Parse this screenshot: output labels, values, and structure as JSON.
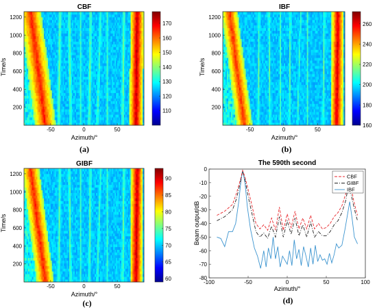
{
  "panels": [
    {
      "id": "a",
      "sublabel": "(a)",
      "chart_data": {
        "type": "heatmap",
        "title": "CBF",
        "xlabel": "Azimuth/°",
        "ylabel": "Time/s",
        "xlim": [
          -90,
          90
        ],
        "ylim": [
          0,
          1260
        ],
        "xticks": [
          -50,
          0,
          50
        ],
        "yticks": [
          200,
          400,
          600,
          800,
          1000,
          1200
        ],
        "colorbar": {
          "min": 100,
          "max": 178,
          "ticks": [
            110,
            120,
            130,
            140,
            150,
            160,
            170
          ]
        },
        "tracks": [
          {
            "x_at_t0": -58,
            "x_at_tmax": -80,
            "width": 16,
            "level": 0.82
          },
          {
            "x_at_t0": 78,
            "x_at_tmax": 80,
            "width": 10,
            "level": 0.9
          },
          {
            "x_at_t0": -38,
            "x_at_tmax": -36,
            "width": 3,
            "level": 0.45
          },
          {
            "x_at_t0": -20,
            "x_at_tmax": -22,
            "width": 3,
            "level": 0.45
          },
          {
            "x_at_t0": -5,
            "x_at_tmax": -5,
            "width": 3,
            "level": 0.4
          },
          {
            "x_at_t0": 8,
            "x_at_tmax": 10,
            "width": 3,
            "level": 0.45
          },
          {
            "x_at_t0": 20,
            "x_at_tmax": 25,
            "width": 3,
            "level": 0.42
          },
          {
            "x_at_t0": 35,
            "x_at_tmax": 35,
            "width": 3,
            "level": 0.4
          },
          {
            "x_at_t0": 58,
            "x_at_tmax": 60,
            "width": 3,
            "level": 0.45
          }
        ]
      }
    },
    {
      "id": "b",
      "sublabel": "(b)",
      "chart_data": {
        "type": "heatmap",
        "title": "IBF",
        "xlabel": "Azimuth/°",
        "ylabel": "Time/s",
        "xlim": [
          -90,
          90
        ],
        "ylim": [
          0,
          1260
        ],
        "xticks": [
          -50,
          0,
          50
        ],
        "yticks": [
          200,
          400,
          600,
          800,
          1000,
          1200
        ],
        "colorbar": {
          "min": 160,
          "max": 272,
          "ticks": [
            160,
            180,
            200,
            220,
            240,
            260
          ]
        },
        "tracks": [
          {
            "x_at_t0": -58,
            "x_at_tmax": -80,
            "width": 12,
            "level": 0.8
          },
          {
            "x_at_t0": 78,
            "x_at_tmax": 80,
            "width": 9,
            "level": 0.88
          },
          {
            "x_at_t0": -38,
            "x_at_tmax": -36,
            "width": 2,
            "level": 0.45
          },
          {
            "x_at_t0": -20,
            "x_at_tmax": -22,
            "width": 2,
            "level": 0.45
          },
          {
            "x_at_t0": -5,
            "x_at_tmax": -5,
            "width": 2,
            "level": 0.4
          },
          {
            "x_at_t0": 8,
            "x_at_tmax": 10,
            "width": 2,
            "level": 0.45
          },
          {
            "x_at_t0": 20,
            "x_at_tmax": 25,
            "width": 2,
            "level": 0.42
          },
          {
            "x_at_t0": 35,
            "x_at_tmax": 35,
            "width": 2,
            "level": 0.4
          },
          {
            "x_at_t0": 58,
            "x_at_tmax": 60,
            "width": 2,
            "level": 0.45
          }
        ]
      }
    },
    {
      "id": "c",
      "sublabel": "(c)",
      "chart_data": {
        "type": "heatmap",
        "title": "GIBF",
        "xlabel": "Azimuth/°",
        "ylabel": "Time/s",
        "xlim": [
          -90,
          90
        ],
        "ylim": [
          0,
          1260
        ],
        "xticks": [
          -50,
          0,
          50
        ],
        "yticks": [
          200,
          400,
          600,
          800,
          1000,
          1200
        ],
        "colorbar": {
          "min": 59,
          "max": 93,
          "ticks": [
            60,
            65,
            70,
            75,
            80,
            85,
            90
          ]
        },
        "tracks": [
          {
            "x_at_t0": -58,
            "x_at_tmax": -80,
            "width": 13,
            "level": 0.82
          },
          {
            "x_at_t0": 78,
            "x_at_tmax": 80,
            "width": 9,
            "level": 0.9
          },
          {
            "x_at_t0": -38,
            "x_at_tmax": -36,
            "width": 2.5,
            "level": 0.45
          },
          {
            "x_at_t0": -20,
            "x_at_tmax": -22,
            "width": 2.5,
            "level": 0.45
          },
          {
            "x_at_t0": -5,
            "x_at_tmax": -5,
            "width": 2.5,
            "level": 0.4
          },
          {
            "x_at_t0": 8,
            "x_at_tmax": 10,
            "width": 2.5,
            "level": 0.45
          },
          {
            "x_at_t0": 20,
            "x_at_tmax": 25,
            "width": 2.5,
            "level": 0.42
          },
          {
            "x_at_t0": 35,
            "x_at_tmax": 35,
            "width": 2.5,
            "level": 0.4
          },
          {
            "x_at_t0": 58,
            "x_at_tmax": 60,
            "width": 2.5,
            "level": 0.45
          }
        ]
      }
    },
    {
      "id": "d",
      "sublabel": "(d)",
      "chart_data": {
        "type": "line",
        "title": "The 590th second",
        "xlabel": "Azimuth/°",
        "ylabel": "Beam output/dB",
        "xlim": [
          -100,
          100
        ],
        "ylim": [
          -80,
          0
        ],
        "xticks": [
          -100,
          -50,
          0,
          50,
          100
        ],
        "yticks": [
          0,
          -10,
          -20,
          -30,
          -40,
          -50,
          -60,
          -70,
          -80
        ],
        "legend_position": "top-right",
        "series": [
          {
            "name": "CBF",
            "color": "#e8262b",
            "dash": "dashed",
            "x": [
              -90,
              -80,
              -70,
              -65,
              -60,
              -57,
              -54,
              -50,
              -45,
              -40,
              -35,
              -30,
              -25,
              -20,
              -15,
              -10,
              -5,
              0,
              5,
              10,
              15,
              20,
              25,
              30,
              35,
              40,
              45,
              50,
              55,
              60,
              65,
              70,
              75,
              78,
              82,
              85,
              88,
              90
            ],
            "y": [
              -34,
              -31,
              -26,
              -18,
              -8,
              -1,
              -6,
              -15,
              -27,
              -40,
              -44,
              -41,
              -45,
              -36,
              -45,
              -28,
              -45,
              -33,
              -43,
              -31,
              -44,
              -36,
              -44,
              -34,
              -44,
              -40,
              -44,
              -43,
              -40,
              -35,
              -32,
              -27,
              -18,
              -10,
              -14,
              -23,
              -30,
              -34
            ]
          },
          {
            "name": "GIBF",
            "color": "#222222",
            "dash": "dashdot",
            "x": [
              -90,
              -80,
              -70,
              -65,
              -60,
              -57,
              -54,
              -50,
              -45,
              -40,
              -35,
              -30,
              -25,
              -20,
              -15,
              -10,
              -5,
              0,
              5,
              10,
              15,
              20,
              25,
              30,
              35,
              40,
              45,
              50,
              55,
              60,
              65,
              70,
              75,
              78,
              82,
              85,
              88,
              90
            ],
            "y": [
              -38,
              -35,
              -30,
              -22,
              -10,
              -1,
              -8,
              -20,
              -33,
              -46,
              -50,
              -47,
              -51,
              -42,
              -50,
              -35,
              -50,
              -38,
              -48,
              -36,
              -49,
              -41,
              -50,
              -39,
              -50,
              -46,
              -49,
              -49,
              -46,
              -41,
              -38,
              -32,
              -23,
              -13,
              -19,
              -27,
              -34,
              -38
            ]
          },
          {
            "name": "IBF",
            "color": "#3a93cf",
            "dash": "solid",
            "x": [
              -90,
              -85,
              -80,
              -75,
              -70,
              -66,
              -62,
              -59,
              -57,
              -54,
              -51,
              -47,
              -42,
              -38,
              -34,
              -30,
              -27,
              -24,
              -21,
              -18,
              -15,
              -12,
              -9,
              -6,
              -3,
              0,
              3,
              6,
              9,
              12,
              15,
              18,
              21,
              24,
              27,
              30,
              33,
              36,
              39,
              42,
              45,
              48,
              51,
              54,
              57,
              60,
              63,
              66,
              70,
              74,
              77,
              80,
              83,
              86,
              90
            ],
            "y": [
              -50,
              -51,
              -57,
              -46,
              -46,
              -40,
              -24,
              -8,
              -1,
              -10,
              -28,
              -44,
              -58,
              -64,
              -73,
              -60,
              -72,
              -58,
              -66,
              -50,
              -66,
              -57,
              -72,
              -64,
              -67,
              -70,
              -60,
              -71,
              -52,
              -66,
              -59,
              -71,
              -57,
              -64,
              -72,
              -58,
              -70,
              -56,
              -68,
              -63,
              -67,
              -66,
              -70,
              -62,
              -69,
              -63,
              -55,
              -58,
              -56,
              -44,
              -34,
              -24,
              -36,
              -50,
              -55
            ]
          }
        ]
      }
    }
  ]
}
